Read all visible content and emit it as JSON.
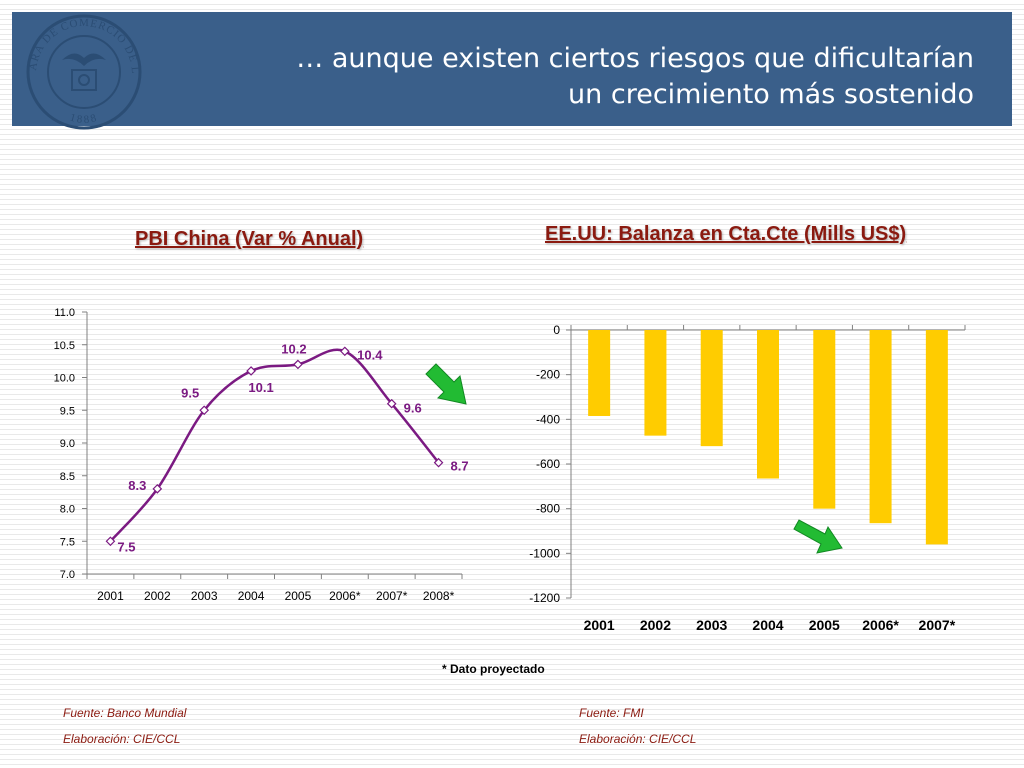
{
  "header": {
    "title_line1": "… aunque existen ciertos riesgos que dificultarían",
    "title_line2": "un crecimiento más sostenido",
    "logo_text": "CAMARA DE COMERCIO DE LIMA",
    "logo_year": "1888",
    "background_color": "#3a5f8a"
  },
  "left_chart": {
    "title": "PBI China (Var % Anual)",
    "source": "Fuente: Banco Mundial",
    "credit": "Elaboración: CIE/CCL"
  },
  "right_chart": {
    "title": "EE.UU: Balanza en Cta.Cte (Mills US$)",
    "source": "Fuente: FMI",
    "credit": "Elaboración: CIE/CCL"
  },
  "footnote": "* Dato proyectado",
  "icons": [
    "logo-seal-icon",
    "down-arrow-icon"
  ],
  "colors": {
    "line": "#7b1a82",
    "bar": "#ffcc00",
    "arrow": "#22bb33",
    "title": "#8b1a10"
  },
  "chart_data": [
    {
      "type": "line",
      "title": "PBI China (Var % Anual)",
      "x": [
        "2001",
        "2002",
        "2003",
        "2004",
        "2005",
        "2006*",
        "2007*",
        "2008*"
      ],
      "series": [
        {
          "values": [
            7.5,
            8.3,
            9.5,
            10.1,
            10.2,
            10.4,
            9.6,
            8.7
          ]
        }
      ],
      "data_labels": [
        "7.5",
        "8.3",
        "9.5",
        "10.1",
        "10.2",
        "10.4",
        "9.6",
        "8.7"
      ],
      "ylim": [
        7.0,
        11.0
      ],
      "yticks": [
        "7.0",
        "7.5",
        "8.0",
        "8.5",
        "9.0",
        "9.5",
        "10.0",
        "10.5",
        "11.0"
      ],
      "grid": false,
      "legend": "none"
    },
    {
      "type": "bar",
      "title": "EE.UU: Balanza en Cta.Cte (Mills US$)",
      "categories": [
        "2001",
        "2002",
        "2003",
        "2004",
        "2005",
        "2006*",
        "2007*"
      ],
      "values": [
        -385,
        -473,
        -520,
        -665,
        -800,
        -865,
        -960
      ],
      "ylim": [
        -1200,
        0
      ],
      "yticks": [
        "0",
        "-200",
        "-400",
        "-600",
        "-800",
        "-1000",
        "-1200"
      ],
      "grid": false,
      "legend": "none"
    }
  ]
}
